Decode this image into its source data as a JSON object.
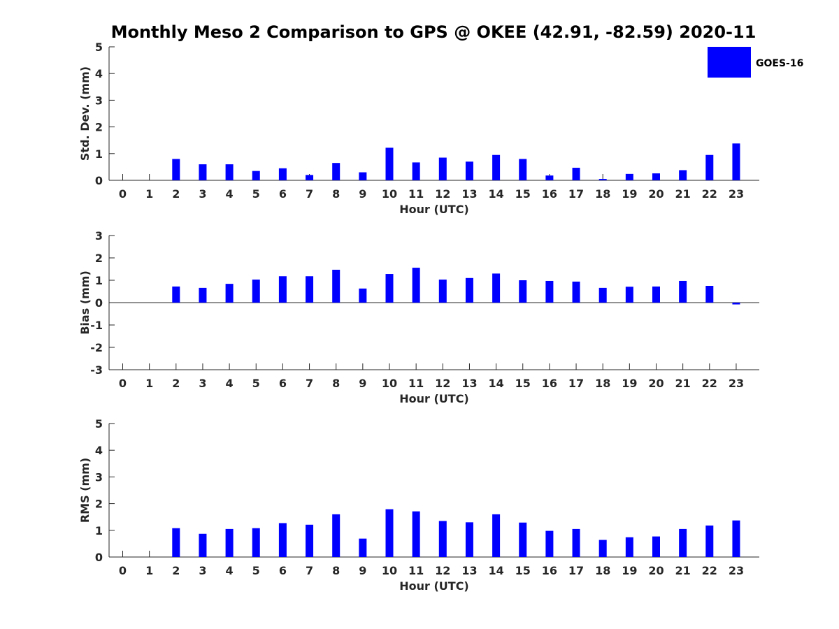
{
  "title": "Monthly Meso 2 Comparison to GPS @ OKEE (42.91, -82.59) 2020-11",
  "legend": {
    "label": "GOES-16",
    "color": "#0000ff",
    "placement": "top-right"
  },
  "chart_data": [
    {
      "type": "bar",
      "categories": [
        "0",
        "1",
        "2",
        "3",
        "4",
        "5",
        "6",
        "7",
        "8",
        "9",
        "10",
        "11",
        "12",
        "13",
        "14",
        "15",
        "16",
        "17",
        "18",
        "19",
        "20",
        "21",
        "22",
        "23"
      ],
      "series": [
        {
          "name": "GOES-16",
          "values": [
            0,
            0,
            0.8,
            0.6,
            0.6,
            0.35,
            0.45,
            0.2,
            0.65,
            0.3,
            1.22,
            0.67,
            0.85,
            0.7,
            0.95,
            0.8,
            0.18,
            0.47,
            0.05,
            0.24,
            0.26,
            0.38,
            0.95,
            1.38
          ]
        }
      ],
      "xlabel": "Hour (UTC)",
      "ylabel": "Std. Dev. (mm)",
      "ylim": [
        0,
        5
      ],
      "yticks": [
        "0",
        "1",
        "2",
        "3",
        "4",
        "5"
      ],
      "grid": false
    },
    {
      "type": "bar",
      "categories": [
        "0",
        "1",
        "2",
        "3",
        "4",
        "5",
        "6",
        "7",
        "8",
        "9",
        "10",
        "11",
        "12",
        "13",
        "14",
        "15",
        "16",
        "17",
        "18",
        "19",
        "20",
        "21",
        "22",
        "23"
      ],
      "series": [
        {
          "name": "GOES-16",
          "values": [
            0,
            0,
            0.72,
            0.66,
            0.84,
            1.03,
            1.18,
            1.18,
            1.47,
            0.63,
            1.28,
            1.56,
            1.03,
            1.1,
            1.3,
            1.0,
            0.97,
            0.94,
            0.66,
            0.71,
            0.72,
            0.97,
            0.75,
            -0.08
          ]
        }
      ],
      "xlabel": "Hour (UTC)",
      "ylabel": "Bias (mm)",
      "ylim": [
        -3,
        3
      ],
      "yticks": [
        "-3",
        "-2",
        "-1",
        "0",
        "1",
        "2",
        "3"
      ],
      "grid": false
    },
    {
      "type": "bar",
      "categories": [
        "0",
        "1",
        "2",
        "3",
        "4",
        "5",
        "6",
        "7",
        "8",
        "9",
        "10",
        "11",
        "12",
        "13",
        "14",
        "15",
        "16",
        "17",
        "18",
        "19",
        "20",
        "21",
        "22",
        "23"
      ],
      "series": [
        {
          "name": "GOES-16",
          "values": [
            0,
            0,
            1.08,
            0.87,
            1.05,
            1.08,
            1.27,
            1.21,
            1.6,
            0.69,
            1.79,
            1.71,
            1.35,
            1.3,
            1.6,
            1.29,
            0.98,
            1.05,
            0.64,
            0.74,
            0.77,
            1.05,
            1.18,
            1.37
          ]
        }
      ],
      "xlabel": "Hour (UTC)",
      "ylabel": "RMS (mm)",
      "ylim": [
        0,
        5
      ],
      "yticks": [
        "0",
        "1",
        "2",
        "3",
        "4",
        "5"
      ],
      "grid": false
    }
  ]
}
